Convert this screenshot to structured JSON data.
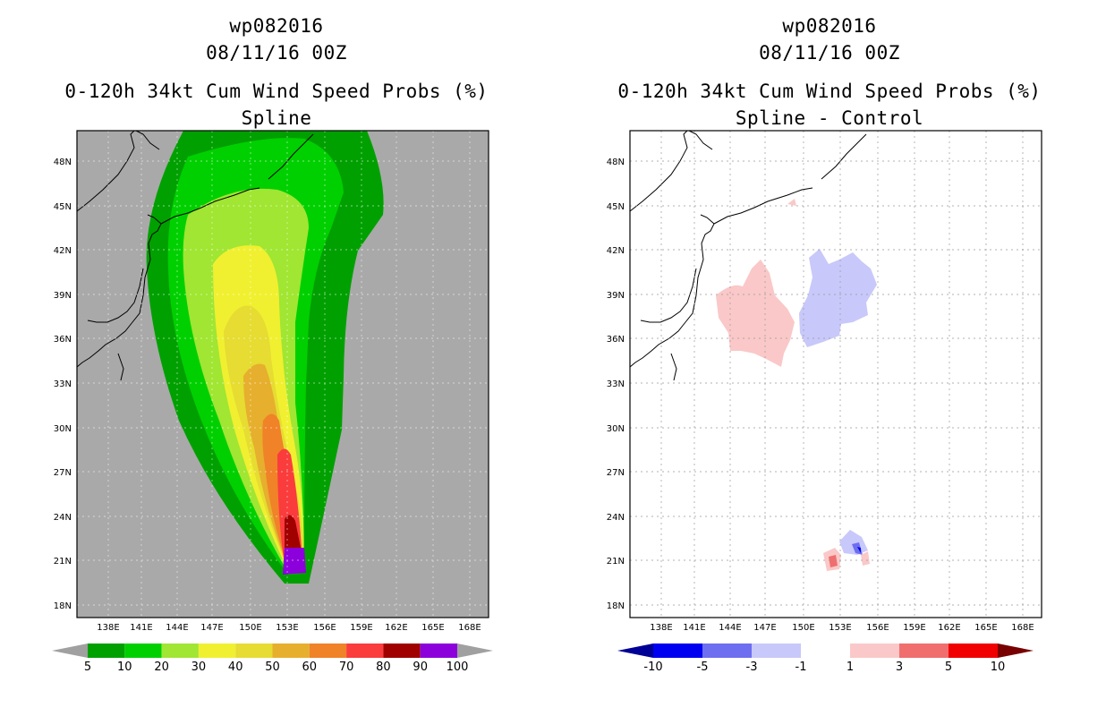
{
  "panels": [
    {
      "storm_id": "wp082016",
      "datetime": "08/11/16 00Z",
      "product": "0-120h 34kt Cum Wind Speed Probs (%)",
      "subtitle": "Spline",
      "colorbar": {
        "labels": [
          "5",
          "10",
          "20",
          "30",
          "40",
          "50",
          "60",
          "70",
          "80",
          "90",
          "100"
        ],
        "colors": [
          "#00a000",
          "#00d000",
          "#a0e632",
          "#f0f030",
          "#e6dc32",
          "#e6af2d",
          "#f08228",
          "#fa3c3c",
          "#a00000",
          "#8c00dc"
        ],
        "end_colors": [
          "#a0a0a0",
          "#a0a0a0"
        ]
      },
      "background": "#a9a9a9"
    },
    {
      "storm_id": "wp082016",
      "datetime": "08/11/16 00Z",
      "product": "0-120h 34kt Cum Wind Speed Probs (%)",
      "subtitle": "Spline - Control",
      "colorbar": {
        "labels": [
          "-10",
          "-5",
          "-3",
          "-1",
          "1",
          "3",
          "5",
          "10"
        ],
        "colors": [
          "#0000f0",
          "#6e6ef0",
          "#c8c8fa",
          "#ffffff",
          "#fac8c8",
          "#f06e6e",
          "#f00000"
        ],
        "end_colors": [
          "#000096",
          "#780000"
        ]
      },
      "background": "#ffffff"
    }
  ],
  "axes": {
    "lon_labels": [
      "138E",
      "141E",
      "144E",
      "147E",
      "150E",
      "153E",
      "156E",
      "159E",
      "162E",
      "165E",
      "168E"
    ],
    "lat_labels": [
      "48N",
      "45N",
      "42N",
      "39N",
      "36N",
      "33N",
      "30N",
      "27N",
      "24N",
      "21N",
      "18N"
    ]
  }
}
